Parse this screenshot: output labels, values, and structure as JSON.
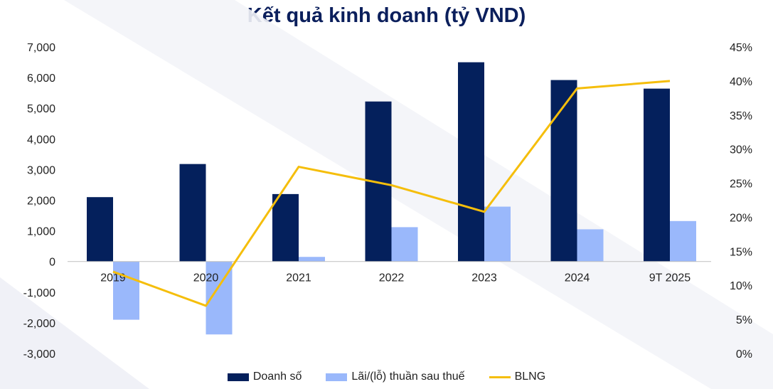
{
  "chart_data": {
    "type": "bar",
    "title": "Kết quả kinh doanh (tỷ VND)",
    "categories": [
      "2019",
      "2020",
      "2021",
      "2022",
      "2023",
      "2024",
      "9T 2025"
    ],
    "series": [
      {
        "name": "Doanh số",
        "kind": "bar",
        "axis": "left",
        "color": "#04205c",
        "values": [
          2100,
          3180,
          2200,
          5220,
          6500,
          5920,
          5640
        ]
      },
      {
        "name": "Lãi/(lỗ) thuần sau thuế",
        "kind": "bar",
        "axis": "left",
        "color": "#9ab8fb",
        "values": [
          -1900,
          -2380,
          150,
          1120,
          1790,
          1050,
          1320
        ]
      },
      {
        "name": "BLNG",
        "kind": "line",
        "axis": "right",
        "color": "#f5be0b",
        "values": [
          12.0,
          7.0,
          27.4,
          24.7,
          20.8,
          38.9,
          40.0
        ]
      }
    ],
    "y_left": {
      "min": -3000,
      "max": 7000,
      "ticks": [
        7000,
        6000,
        5000,
        4000,
        3000,
        2000,
        1000,
        0,
        -1000,
        -2000,
        -3000
      ],
      "tick_labels": [
        "7,000",
        "6,000",
        "5,000",
        "4,000",
        "3,000",
        "2,000",
        "1,000",
        "0",
        "-1,000",
        "-2,000",
        "-3,000"
      ]
    },
    "y_right": {
      "min": 0,
      "max": 45,
      "ticks": [
        45,
        40,
        35,
        30,
        25,
        20,
        15,
        10,
        5,
        0
      ],
      "tick_labels": [
        "45%",
        "40%",
        "35%",
        "30%",
        "25%",
        "20%",
        "15%",
        "10%",
        "5%",
        "0%"
      ]
    },
    "grid": false,
    "legend_position": "bottom-center"
  }
}
